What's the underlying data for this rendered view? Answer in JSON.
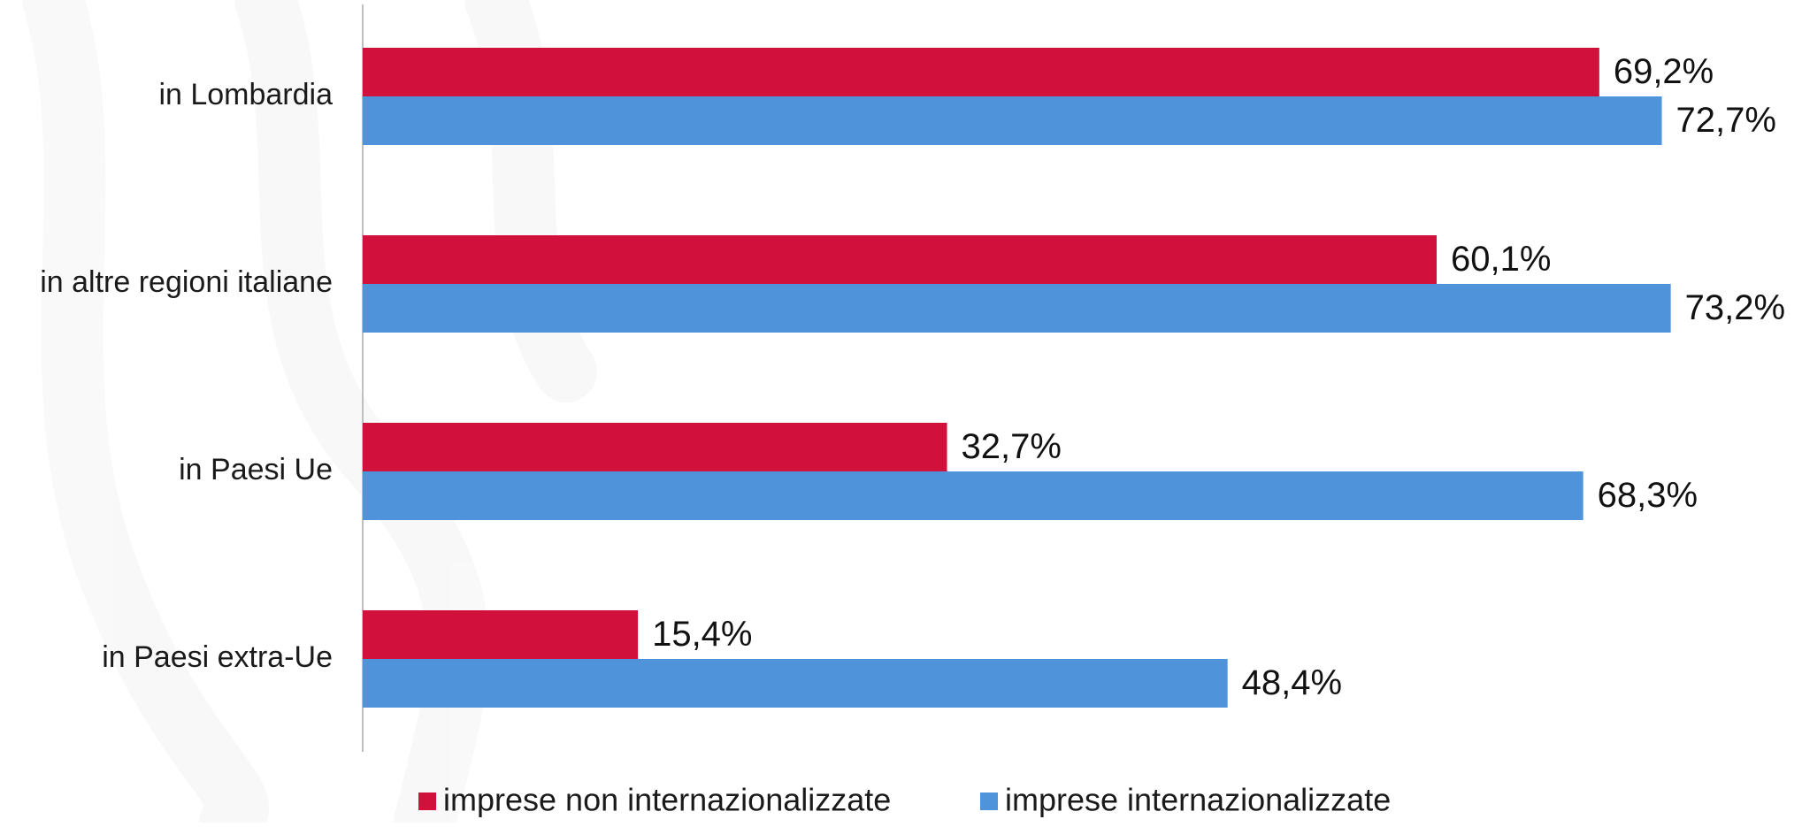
{
  "chart_data": {
    "type": "bar",
    "orientation": "horizontal",
    "categories": [
      "in Lombardia",
      "in altre regioni italiane",
      "in Paesi Ue",
      "in Paesi extra-Ue"
    ],
    "series": [
      {
        "name": "imprese non internazionalizzate",
        "values": [
          69.2,
          60.1,
          32.7,
          15.4
        ],
        "labels": [
          "69,2%",
          "60,1%",
          "32,7%",
          "15,4%"
        ],
        "color": "#D2103C"
      },
      {
        "name": "imprese internazionalizzate",
        "values": [
          72.7,
          73.2,
          68.3,
          48.4
        ],
        "labels": [
          "72,7%",
          "73,2%",
          "68,3%",
          "48,4%"
        ],
        "color": "#4F93DA"
      }
    ],
    "xlim": [
      0,
      100
    ],
    "grid": false,
    "legend_position": "bottom",
    "axis_color": "#BFBFBF"
  }
}
